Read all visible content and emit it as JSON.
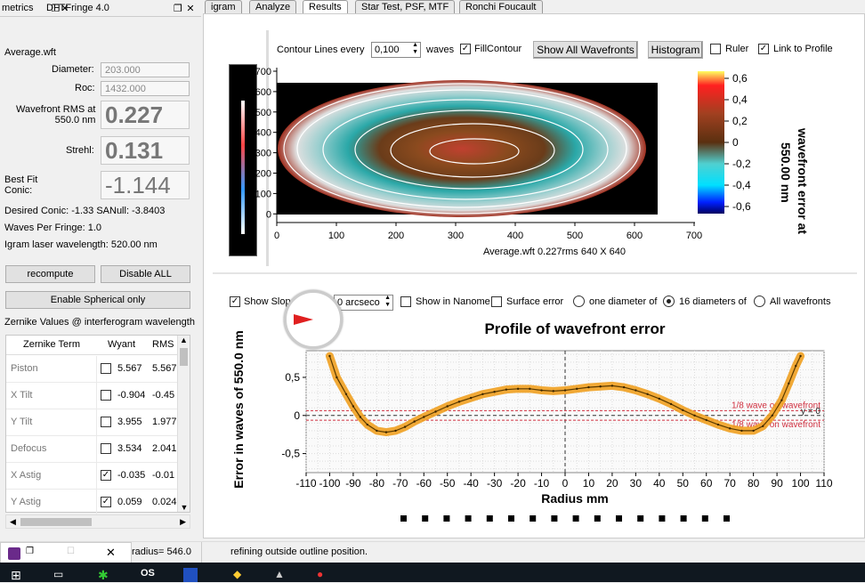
{
  "left_tabs": {
    "tab1": "metrics",
    "tab2": "DFTFringe 4.0"
  },
  "metrics": {
    "filename": "Average.wft",
    "diameter_label": "Diameter:",
    "diameter_value": "203.000",
    "roc_label": "Roc:",
    "roc_value": "1432.000",
    "rms_label_1": "Wavefront RMS at",
    "rms_label_2": "550.0 nm",
    "rms_value": "0.227",
    "strehl_label": "Strehl:",
    "strehl_value": "0.131",
    "bestfit_label_1": "Best Fit",
    "bestfit_label_2": "Conic:",
    "bestfit_value": "-1.144",
    "desired_conic": "Desired Conic:  -1.33 SANull: -3.8403",
    "waves_per_fringe": "Waves Per Fringe: 1.0",
    "laser": "Igram laser wavelength: 520.00 nm",
    "recompute": "recompute",
    "disable_all": "Disable ALL",
    "enable_spherical": "Enable Spherical only",
    "zernike_title": "Zernike Values @ interferogram wavelength",
    "zernike_headers": {
      "term": "Zernike Term",
      "wyant": "Wyant",
      "rms": "RMS"
    },
    "zernike_rows": [
      {
        "term": "Piston",
        "checked": false,
        "wyant": "5.567",
        "rms": "5.567"
      },
      {
        "term": "X Tilt",
        "checked": false,
        "wyant": "-0.904",
        "rms": "-0.45"
      },
      {
        "term": "Y Tilt",
        "checked": false,
        "wyant": "3.955",
        "rms": "1.977"
      },
      {
        "term": "Defocus",
        "checked": false,
        "wyant": "3.534",
        "rms": "2.041"
      },
      {
        "term": "X Astig",
        "checked": true,
        "wyant": "-0.035",
        "rms": "-0.01"
      },
      {
        "term": "Y Astig",
        "checked": true,
        "wyant": "0.059",
        "rms": "0.024"
      }
    ]
  },
  "tabs": [
    "igram",
    "Analyze",
    "Results",
    "Star Test, PSF, MTF",
    "Ronchi  Foucault"
  ],
  "top_toolbar": {
    "contour_label": "Contour Lines every",
    "contour_value": "0,100",
    "waves": "waves",
    "fill_contour": "FillContour",
    "show_all": "Show All Wavefronts",
    "histogram": "Histogram",
    "ruler": "Ruler",
    "link_profile": "Link to Profile"
  },
  "contour_plot": {
    "caption": "Average.wft  0.227rms 640 X 640",
    "y_ticks": [
      "700",
      "600",
      "500",
      "400",
      "300",
      "200",
      "100",
      "0"
    ],
    "x_ticks": [
      "0",
      "100",
      "200",
      "300",
      "400",
      "500",
      "600",
      "700"
    ],
    "colorbar_ticks": [
      "0,6",
      "0,4",
      "0,2",
      "0",
      "-0,2",
      "-0,4",
      "-0,6"
    ],
    "colorbar_label_1": "wavefront error at",
    "colorbar_label_2": "550.00 nm"
  },
  "profile_toolbar": {
    "show_slope": "Show Slope",
    "slope_value": "0 arcseco",
    "show_nm": "Show in Nanome",
    "surface_error": "Surface error",
    "one_diameter": "one diameter of",
    "sixteen": "16 diameters of",
    "all_wavefronts": "All wavefronts"
  },
  "chart_data": {
    "type": "line",
    "title": "Profile of wavefront error",
    "xlabel": "Radius mm",
    "ylabel": "Error in waves of 550.0 nm",
    "xlim": [
      -110,
      110
    ],
    "ylim": [
      -0.75,
      0.85
    ],
    "x_ticks": [
      "-110",
      "-100",
      "-90",
      "-80",
      "-70",
      "-60",
      "-50",
      "-40",
      "-30",
      "-20",
      "-10",
      "0",
      "10",
      "20",
      "30",
      "40",
      "50",
      "60",
      "70",
      "80",
      "90",
      "100",
      "110"
    ],
    "y_ticks": [
      "0,5",
      "0",
      "-0,5"
    ],
    "annotations": [
      "1/8 wave on wavefront",
      "1/8 wave on wavefront",
      "y = 0"
    ],
    "x": [
      -100,
      -97,
      -93,
      -90,
      -87,
      -84,
      -80,
      -76,
      -72,
      -68,
      -64,
      -60,
      -55,
      -50,
      -45,
      -40,
      -35,
      -30,
      -25,
      -20,
      -15,
      -10,
      -5,
      0,
      5,
      10,
      15,
      20,
      25,
      30,
      35,
      40,
      45,
      50,
      55,
      60,
      65,
      70,
      75,
      80,
      84,
      88,
      92,
      95,
      98,
      100
    ],
    "values": [
      0.78,
      0.5,
      0.28,
      0.12,
      -0.02,
      -0.12,
      -0.2,
      -0.22,
      -0.2,
      -0.15,
      -0.08,
      -0.02,
      0.05,
      0.12,
      0.18,
      0.23,
      0.28,
      0.31,
      0.34,
      0.35,
      0.35,
      0.33,
      0.32,
      0.33,
      0.35,
      0.37,
      0.38,
      0.39,
      0.37,
      0.33,
      0.28,
      0.22,
      0.15,
      0.07,
      0.0,
      -0.06,
      -0.12,
      -0.17,
      -0.2,
      -0.2,
      -0.14,
      0.0,
      0.2,
      0.42,
      0.65,
      0.78
    ]
  },
  "status": {
    "radius": "radius=  546.0",
    "message": "refining outside outline position."
  }
}
